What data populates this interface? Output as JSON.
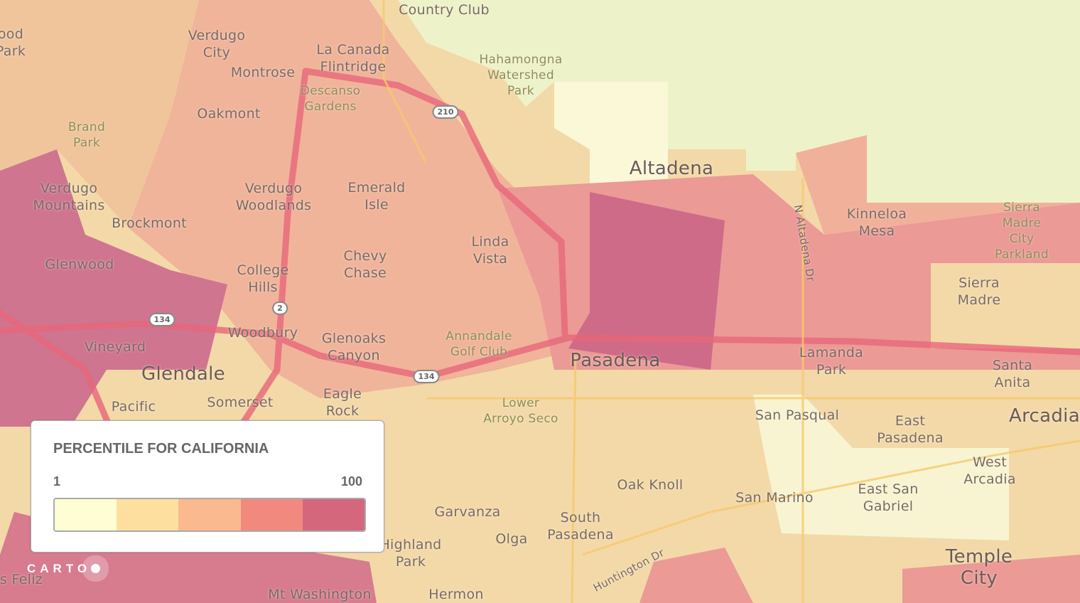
{
  "map": {
    "labels": [
      {
        "text": "Country Club",
        "kind": "normal"
      },
      {
        "text": "Verdugo\nCity",
        "kind": "normal"
      },
      {
        "text": "La Canada\nFlintridge",
        "kind": "normal"
      },
      {
        "text": "Montrose",
        "kind": "normal"
      },
      {
        "text": "Hahamongna\nWatershed\nPark",
        "kind": "green"
      },
      {
        "text": "Descanso\nGardens",
        "kind": "green"
      },
      {
        "text": "Oakmont",
        "kind": "normal"
      },
      {
        "text": "Brand\nPark",
        "kind": "green"
      },
      {
        "text": "Altadena",
        "kind": "big"
      },
      {
        "text": "Verdugo\nMountains",
        "kind": "normal"
      },
      {
        "text": "Verdugo\nWoodlands",
        "kind": "normal"
      },
      {
        "text": "Emerald\nIsle",
        "kind": "normal"
      },
      {
        "text": "Brockmont",
        "kind": "normal"
      },
      {
        "text": "Kinneloa\nMesa",
        "kind": "normal"
      },
      {
        "text": "Sierra Madre\nCity Parkland",
        "kind": "green"
      },
      {
        "text": "Linda\nVista",
        "kind": "normal"
      },
      {
        "text": "Chevy\nChase",
        "kind": "normal"
      },
      {
        "text": "Glenwood",
        "kind": "normal"
      },
      {
        "text": "College\nHills",
        "kind": "normal"
      },
      {
        "text": "Sierra\nMadre",
        "kind": "normal"
      },
      {
        "text": "Woodbury",
        "kind": "normal"
      },
      {
        "text": "Glenoaks\nCanyon",
        "kind": "normal"
      },
      {
        "text": "Annandale\nGolf Club",
        "kind": "green"
      },
      {
        "text": "Vineyard",
        "kind": "normal"
      },
      {
        "text": "Glendale",
        "kind": "big"
      },
      {
        "text": "Pasadena",
        "kind": "big"
      },
      {
        "text": "Lamanda\nPark",
        "kind": "normal"
      },
      {
        "text": "Santa\nAnita",
        "kind": "normal"
      },
      {
        "text": "Eagle\nRock",
        "kind": "normal"
      },
      {
        "text": "Pacific",
        "kind": "normal"
      },
      {
        "text": "Somerset",
        "kind": "normal"
      },
      {
        "text": "Lower\nArroyo Seco",
        "kind": "green"
      },
      {
        "text": "San Pasqual",
        "kind": "normal"
      },
      {
        "text": "East\nPasadena",
        "kind": "normal"
      },
      {
        "text": "Arcadia",
        "kind": "big"
      },
      {
        "text": "West\nArcadia",
        "kind": "normal"
      },
      {
        "text": "Oak Knoll",
        "kind": "normal"
      },
      {
        "text": "San Marino",
        "kind": "normal"
      },
      {
        "text": "East San\nGabriel",
        "kind": "normal"
      },
      {
        "text": "Garvanza",
        "kind": "normal"
      },
      {
        "text": "South\nPasadena",
        "kind": "normal"
      },
      {
        "text": "Highland\nPark",
        "kind": "normal"
      },
      {
        "text": "Olga",
        "kind": "normal"
      },
      {
        "text": "Temple\nCity",
        "kind": "big"
      },
      {
        "text": "Mt Washington",
        "kind": "normal"
      },
      {
        "text": "Hermon",
        "kind": "normal"
      },
      {
        "text": "s Feliz",
        "kind": "normal"
      },
      {
        "text": "ood\nPark",
        "kind": "normal"
      },
      {
        "text": "N Altadena Dr",
        "kind": "normal"
      },
      {
        "text": "Huntington Dr",
        "kind": "normal"
      }
    ],
    "shields": [
      "210",
      "134",
      "134",
      "2"
    ]
  },
  "legend": {
    "title": "PERCENTILE FOR CALIFORNIA",
    "min": "1",
    "max": "100",
    "colors": [
      "#fffdd4",
      "#fde0a0",
      "#fab98f",
      "#f2897f",
      "#d5677c"
    ]
  },
  "attribution": {
    "logo": "CARTO"
  }
}
